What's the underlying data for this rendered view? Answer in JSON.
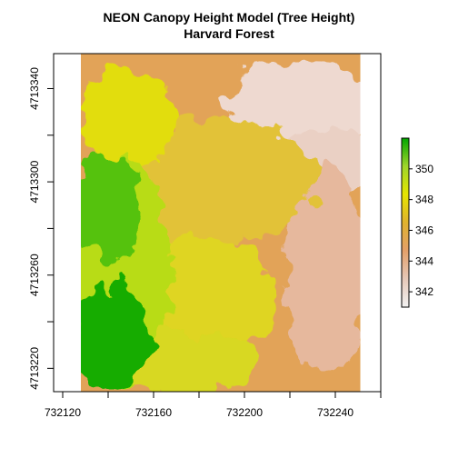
{
  "chart_data": {
    "type": "heatmap",
    "title": "NEON Canopy Height Model (Tree Height)",
    "subtitle": "Harvard Forest",
    "xlabel": "",
    "ylabel": "",
    "xlim": [
      732116,
      732260
    ],
    "ylim": [
      4713210,
      4713355
    ],
    "raster_extent": {
      "x": [
        732128,
        732251
      ],
      "y": [
        4713210,
        4713355
      ]
    },
    "x_ticks": [
      732120,
      732140,
      732160,
      732180,
      732200,
      732220,
      732240,
      732260
    ],
    "x_tick_labels": [
      "732120",
      "732160",
      "732200",
      "732240"
    ],
    "x_tick_label_values": [
      732120,
      732160,
      732200,
      732240
    ],
    "y_ticks": [
      4713220,
      4713240,
      4713260,
      4713280,
      4713300,
      4713320,
      4713340
    ],
    "y_tick_labels": [
      "4713220",
      "4713260",
      "4713300",
      "4713340"
    ],
    "y_tick_label_values": [
      4713220,
      4713260,
      4713300,
      4713340
    ],
    "value_range": [
      341,
      352
    ],
    "legend": {
      "position": "right",
      "ticks": [
        342,
        344,
        346,
        348,
        350
      ],
      "tick_labels": [
        "342",
        "344",
        "346",
        "348",
        "350"
      ],
      "colors": [
        "#f2f2f2",
        "#e6c8b8",
        "#e4a06a",
        "#e0b22e",
        "#e5e500",
        "#9fd52a",
        "#00a600"
      ]
    },
    "grid": false
  }
}
